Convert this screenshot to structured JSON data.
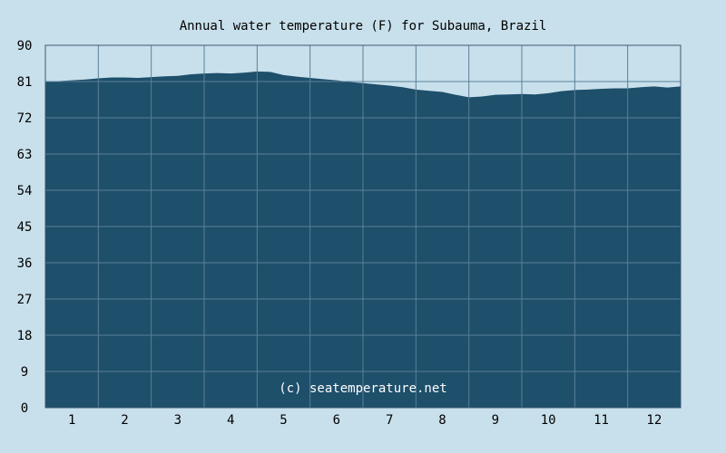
{
  "chart_data": {
    "type": "area",
    "title": "Annual water temperature (F) for Subauma, Brazil",
    "xlabel": "",
    "ylabel": "",
    "categories": [
      "1",
      "2",
      "3",
      "4",
      "5",
      "6",
      "7",
      "8",
      "9",
      "10",
      "11",
      "12"
    ],
    "xlim": [
      0,
      12
    ],
    "ylim": [
      0,
      90
    ],
    "y_ticks": [
      "0",
      "9",
      "18",
      "27",
      "36",
      "45",
      "54",
      "63",
      "72",
      "81",
      "90"
    ],
    "grid": true,
    "legend": "none",
    "series": [
      {
        "x": [
          0,
          0.25,
          0.5,
          0.75,
          1,
          1.25,
          1.5,
          1.75,
          2,
          2.25,
          2.5,
          2.75,
          3,
          3.25,
          3.5,
          3.75,
          4,
          4.25,
          4.5,
          4.75,
          5,
          5.25,
          5.5,
          5.75,
          6,
          6.25,
          6.5,
          6.75,
          7,
          7.25,
          7.5,
          7.75,
          8,
          8.25,
          8.5,
          8.75,
          9,
          9.25,
          9.5,
          9.75,
          10,
          10.25,
          10.5,
          10.75,
          11,
          11.25,
          11.5,
          11.75,
          12
        ],
        "values": [
          80.9,
          81.1,
          81.3,
          81.5,
          81.8,
          82.0,
          82.0,
          81.9,
          82.1,
          82.3,
          82.4,
          82.8,
          83.0,
          83.1,
          83.0,
          83.2,
          83.5,
          83.4,
          82.6,
          82.2,
          81.9,
          81.6,
          81.3,
          80.9,
          80.6,
          80.3,
          80.0,
          79.6,
          79.0,
          78.7,
          78.4,
          77.7,
          77.1,
          77.3,
          77.7,
          77.8,
          77.9,
          77.8,
          78.1,
          78.6,
          78.9,
          79.0,
          79.2,
          79.3,
          79.3,
          79.6,
          79.8,
          79.5,
          79.8
        ]
      }
    ],
    "colors": {
      "fill": "#1e4f6b",
      "background": "#c8e0ec",
      "grid": "#5a7f98",
      "axis": "#3a5a70",
      "watermark": "#ffffff"
    },
    "watermark": "(c) seatemperature.net"
  }
}
